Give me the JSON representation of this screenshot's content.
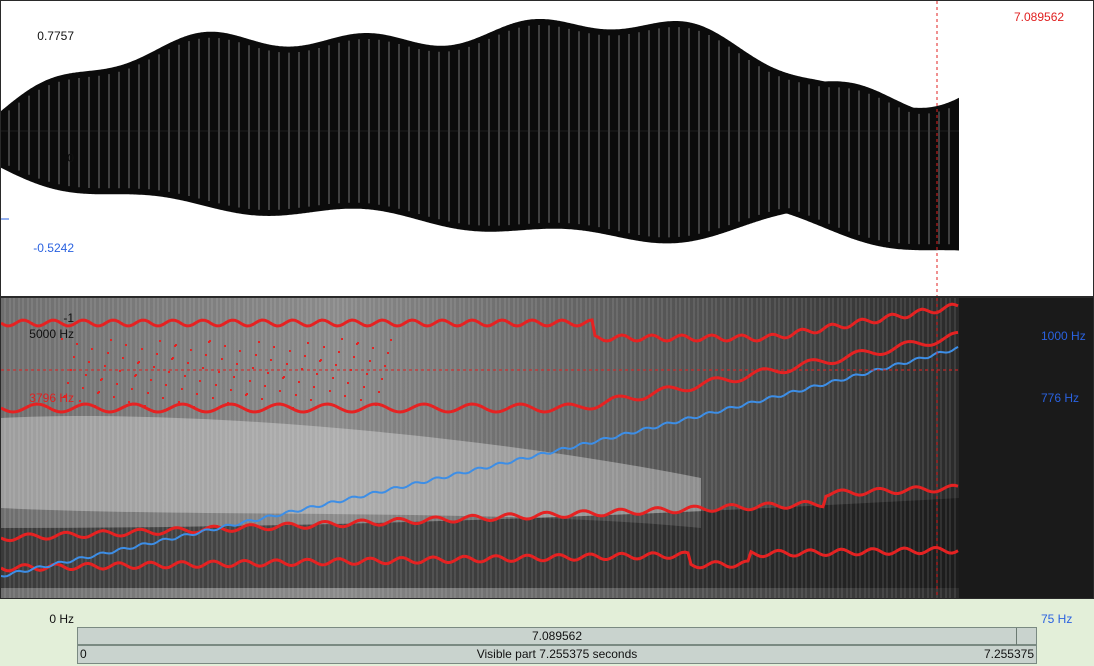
{
  "cursor": {
    "time_label": "7.089562",
    "time_fraction": 0.9774
  },
  "waveform": {
    "y_max_label": "0.7757",
    "y_zero_label": "0",
    "y_selected_label": "-0.5242",
    "y_min_label": "-1"
  },
  "spectrogram": {
    "freq_top_label": "5000 Hz",
    "freq_bottom_label": "0 Hz",
    "freq_cursor_label": "3796 Hz",
    "pitch_top_label": "1000 Hz",
    "pitch_cursor_label": "776 Hz",
    "pitch_bottom_label": "75 Hz"
  },
  "time_bar": {
    "cursor_label": "7.089562",
    "start_label": "0",
    "visible_label": "Visible part 7.255375 seconds",
    "end_label": "7.255375"
  },
  "colors": {
    "background": "#e3efd9",
    "formant": "#e52222",
    "pitch": "#3d8ee6",
    "cursor": "#e02020",
    "axis_blue": "#2a62e0"
  }
}
